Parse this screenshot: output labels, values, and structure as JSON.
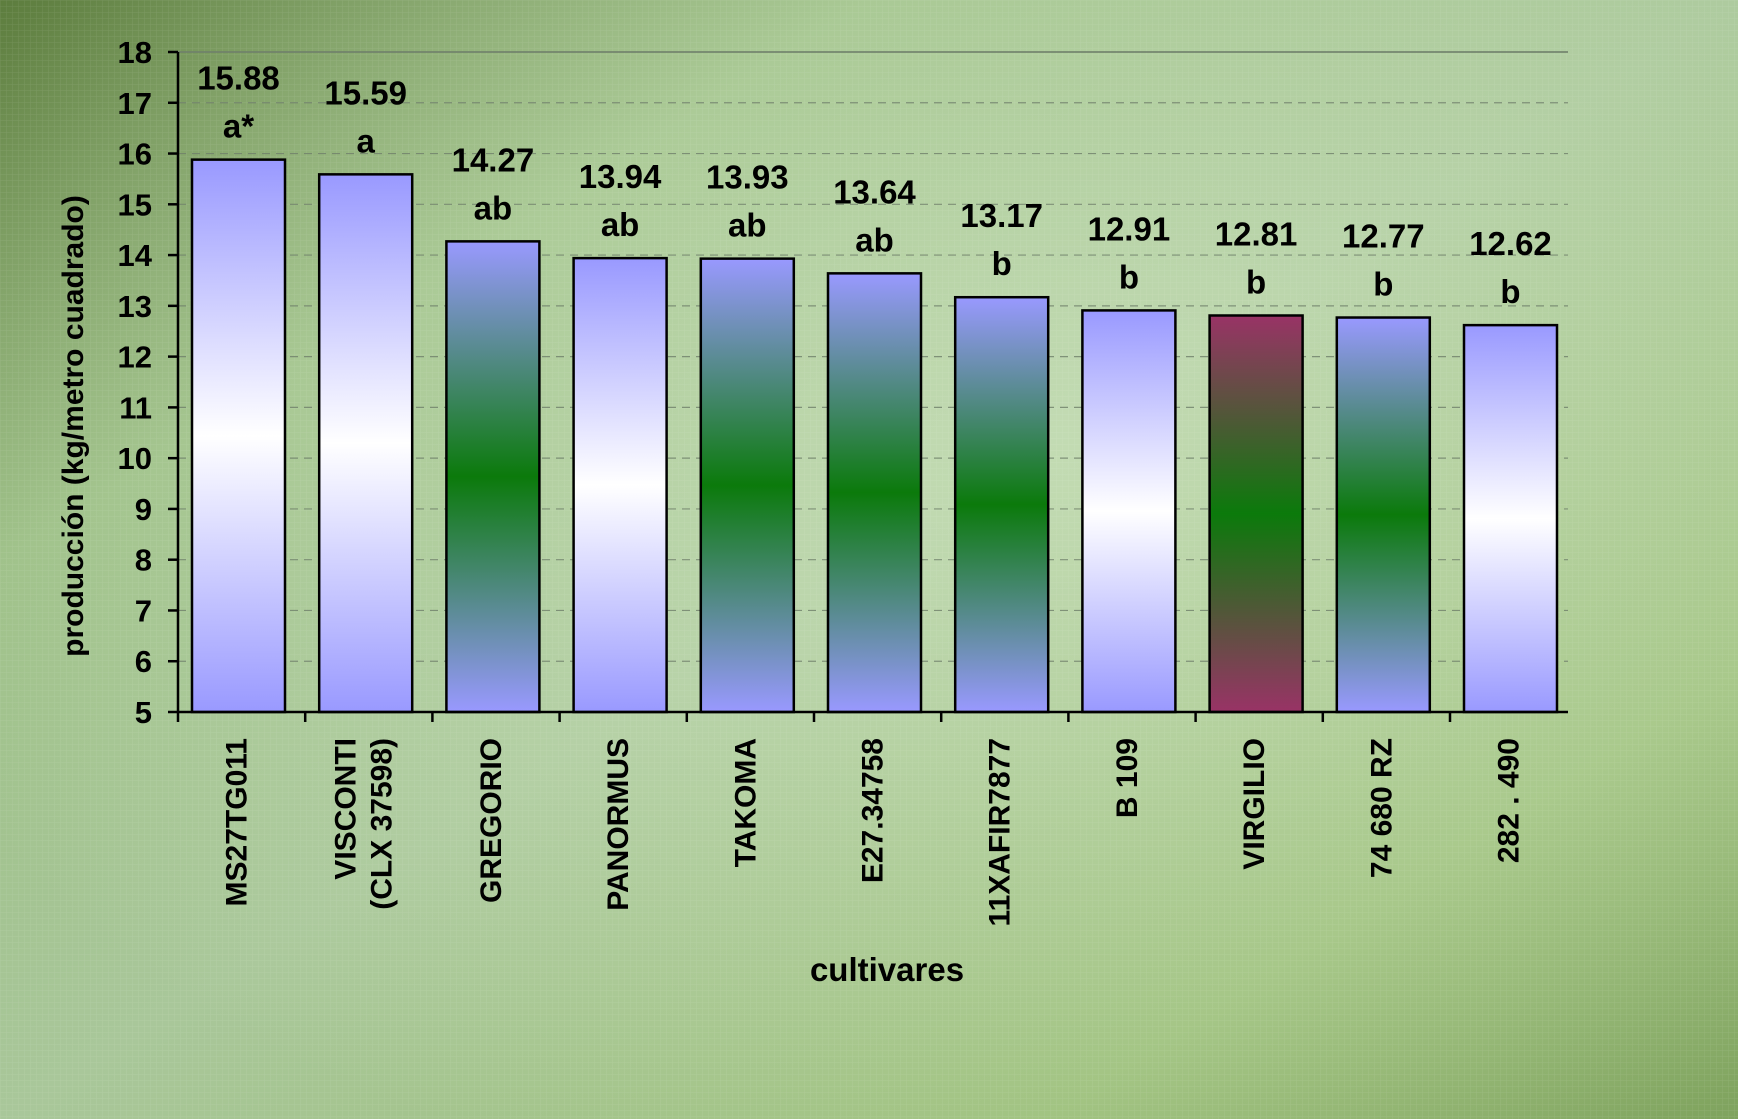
{
  "chart_data": {
    "type": "bar",
    "ylabel": "producción (kg/metro cuadrado)",
    "xlabel": "cultivares",
    "ylim": [
      5,
      18
    ],
    "yticks": [
      5,
      6,
      7,
      8,
      9,
      10,
      11,
      12,
      13,
      14,
      15,
      16,
      17,
      18
    ],
    "grid": "horizontal dashed",
    "categories": [
      "MS27TG011",
      "VISCONTI\n(CLX 37598)",
      "GREGORIO",
      "PANORMUS",
      "TAKOMA",
      "E27.34758",
      "11XAFIR7877",
      "B 109",
      "VIRGILIO",
      "74 680 RZ",
      "282 . 490"
    ],
    "values": [
      15.88,
      15.59,
      14.27,
      13.94,
      13.93,
      13.64,
      13.17,
      12.91,
      12.81,
      12.77,
      12.62
    ],
    "value_labels": [
      "15.88",
      "15.59",
      "14.27",
      "13.94",
      "13.93",
      "13.64",
      "13.17",
      "12.91",
      "12.81",
      "12.77",
      "12.62"
    ],
    "significance_letters": [
      "a*",
      "a",
      "ab",
      "ab",
      "ab",
      "ab",
      "b",
      "b",
      "b",
      "b",
      "b"
    ],
    "bar_fills": [
      "blue-white",
      "blue-white",
      "blue-green",
      "blue-white",
      "blue-green",
      "blue-green",
      "blue-green",
      "blue-white",
      "maroon-green",
      "blue-green",
      "blue-white"
    ],
    "colors": {
      "blue": "#9999ff",
      "white": "#ffffff",
      "green": "#0b7a0b",
      "maroon": "#993366",
      "outline": "#000000",
      "grid": "#6f7f6a"
    }
  }
}
